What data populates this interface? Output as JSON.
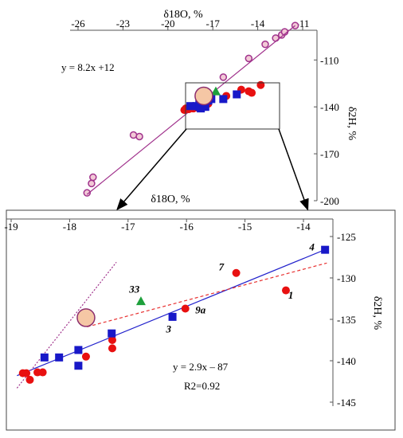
{
  "chart_data": [
    {
      "type": "scatter",
      "xlabel": "δ18O, %",
      "ylabel": "δ2H, %",
      "xlim": [
        -26.5,
        -11
      ],
      "ylim": [
        -200,
        -91
      ],
      "x_ticks": [
        "-26",
        "-23",
        "-20",
        "-17",
        "-14",
        "-11"
      ],
      "y_ticks": [
        "-110",
        "-140",
        "-170",
        "-200"
      ],
      "grid": false,
      "annotations": [
        "y = 8.2x +12"
      ],
      "series": [
        {
          "marker": "open-circle",
          "color": "#a0328c",
          "points": [
            [
              -25.4,
              -195
            ],
            [
              -25.1,
              -189
            ],
            [
              -25.0,
              -185
            ],
            [
              -22.3,
              -158
            ],
            [
              -21.9,
              -159
            ],
            [
              -16.3,
              -121
            ],
            [
              -14.6,
              -109
            ],
            [
              -13.5,
              -100
            ],
            [
              -12.8,
              -96
            ],
            [
              -12.4,
              -94
            ],
            [
              -12.2,
              -92
            ],
            [
              -11.5,
              -88
            ]
          ]
        },
        {
          "marker": "line",
          "color": "#a0328c",
          "points": [
            [
              -25.4,
              -196
            ],
            [
              -11.5,
              -88
            ]
          ]
        },
        {
          "marker": "filled-circle",
          "color": "#e81010",
          "points": [
            [
              -18.8,
              -141
            ],
            [
              -18.6,
              -141.5
            ],
            [
              -18.3,
              -141
            ],
            [
              -18.0,
              -140.5
            ],
            [
              -17.3,
              -138
            ],
            [
              -16.1,
              -133
            ],
            [
              -15.1,
              -129
            ],
            [
              -14.4,
              -131
            ],
            [
              -13.8,
              -126
            ],
            [
              -14.6,
              -130
            ],
            [
              -17.5,
              -139
            ],
            [
              -18.9,
              -142
            ]
          ]
        },
        {
          "marker": "square",
          "color": "#1818c8",
          "points": [
            [
              -18.5,
              -139.5
            ],
            [
              -18.1,
              -139.5
            ],
            [
              -17.9,
              -138
            ],
            [
              -17.8,
              -141
            ],
            [
              -17.3,
              -136
            ],
            [
              -16.3,
              -135
            ],
            [
              -15.4,
              -132
            ],
            [
              -17.9,
              -140
            ],
            [
              -17.5,
              -140
            ],
            [
              -17.1,
              -135
            ]
          ]
        },
        {
          "marker": "triangle",
          "color": "#1ea03c",
          "points": [
            [
              -16.8,
              -130
            ]
          ]
        },
        {
          "marker": "large-circle",
          "color": "#f5c7a5",
          "points": [
            [
              -17.6,
              -133
            ]
          ]
        }
      ]
    },
    {
      "type": "scatter",
      "xlabel": "δ18O, %",
      "ylabel": "δ2H, %",
      "xlim": [
        -19,
        -13.5
      ],
      "ylim": [
        -145,
        -125
      ],
      "x_ticks": [
        "-19",
        "-18",
        "-17",
        "-16",
        "-15",
        "-14"
      ],
      "y_ticks": [
        "-125",
        "-130",
        "-135",
        "-140",
        "-145"
      ],
      "grid": false,
      "annotations": [
        "y = 2.9x – 87",
        "R2=0.92"
      ],
      "series": [
        {
          "marker": "filled-circle",
          "color": "#e81010",
          "points": [
            [
              -18.8,
              -141.5
            ],
            [
              -18.74,
              -141.5
            ],
            [
              -18.68,
              -142.3
            ],
            [
              -18.55,
              -141.4
            ],
            [
              -18.46,
              -141.4
            ],
            [
              -17.72,
              -139.5
            ],
            [
              -17.27,
              -138.5
            ],
            [
              -17.27,
              -137.5
            ],
            [
              -16.02,
              -133.7
            ],
            [
              -15.15,
              -129.4
            ],
            [
              -14.3,
              -131.5
            ]
          ]
        },
        {
          "marker": "square",
          "color": "#1818c8",
          "points": [
            [
              -18.43,
              -139.6
            ],
            [
              -18.18,
              -139.6
            ],
            [
              -17.85,
              -138.7
            ],
            [
              -17.85,
              -140.6
            ],
            [
              -17.28,
              -136.7
            ],
            [
              -16.24,
              -134.7
            ],
            [
              -13.63,
              -126.6
            ]
          ]
        },
        {
          "marker": "triangle",
          "color": "#1ea03c",
          "points": [
            [
              -16.78,
              -132.8
            ]
          ]
        },
        {
          "marker": "large-circle",
          "color": "#f5c7a5",
          "points": [
            [
              -17.72,
              -134.8
            ]
          ]
        },
        {
          "marker": "solid-line",
          "color": "#2222cc",
          "points": [
            [
              -18.9,
              -141.8
            ],
            [
              -13.6,
              -126.5
            ]
          ]
        },
        {
          "marker": "dashed-line",
          "color": "#e83030",
          "points": [
            [
              -17.7,
              -135.9
            ],
            [
              -13.6,
              -128.2
            ]
          ]
        },
        {
          "marker": "dotted-line",
          "color": "#a0328c",
          "points": [
            [
              -18.9,
              -143.3
            ],
            [
              -17.2,
              -128.1
            ]
          ]
        }
      ],
      "point_labels": [
        {
          "text": "4",
          "x": -13.9,
          "y": -126.7
        },
        {
          "text": "7",
          "x": -15.45,
          "y": -129.1
        },
        {
          "text": "33",
          "x": -16.98,
          "y": -131.8
        },
        {
          "text": "9a",
          "x": -15.85,
          "y": -134.3
        },
        {
          "text": "1",
          "x": -14.26,
          "y": -132.5
        },
        {
          "text": "3",
          "x": -16.35,
          "y": -136.6
        }
      ]
    }
  ]
}
